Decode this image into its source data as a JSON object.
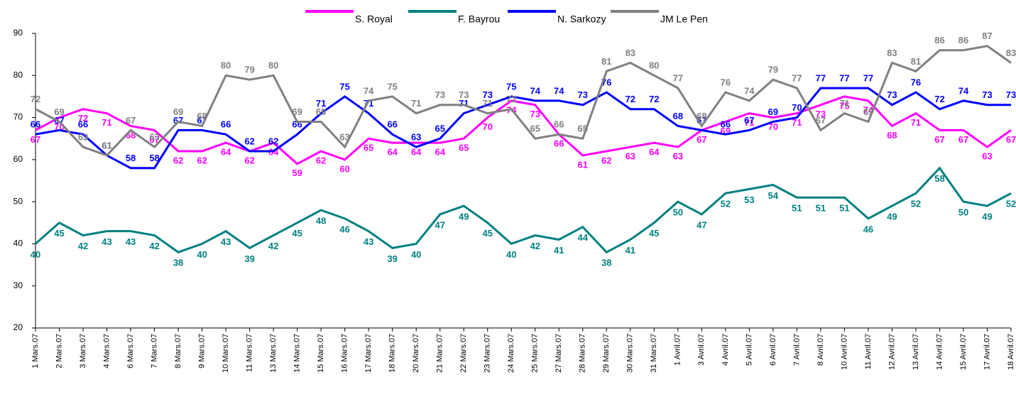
{
  "chart_data": {
    "type": "line",
    "categories": [
      "1 Mars.07",
      "2 Mars.07",
      "3 Mars.07",
      "4 Mars.07",
      "6 Mars.07",
      "7 Mars.07",
      "8 Mars.07",
      "9 Mars.07",
      "10 Mars.07",
      "11 Mars.07",
      "13 Mars.07",
      "14 Mars.07",
      "15 Mars.07",
      "16 Mars.07",
      "17 Mars.07",
      "18 Mars.07",
      "20 Mars.07",
      "21 Mars.07",
      "22 Mars.07",
      "23 Mars.07",
      "24 Mars.07",
      "25 Mars.07",
      "27 Mars.07",
      "28 Mars.07",
      "29 Mars.07",
      "30 Mars.07",
      "31 Mars.07",
      "1 Avril.07",
      "3 Avril.07",
      "4 Avril.07",
      "5 Avril.07",
      "6 Avril.07",
      "7 Avril.07",
      "8 Avril.07",
      "10 Avril.07",
      "11 Avril.07",
      "12 Avril.07",
      "13 Avril.07",
      "14 Avril.07",
      "15 Avril.07",
      "17 Avril.07",
      "18 Avril.07"
    ],
    "series": [
      {
        "name": "S. Royal",
        "color": "#ff00ff",
        "values": [
          67,
          70,
          72,
          71,
          68,
          67,
          62,
          62,
          64,
          62,
          64,
          59,
          62,
          60,
          65,
          64,
          64,
          64,
          65,
          70,
          74,
          73,
          66,
          61,
          62,
          63,
          64,
          63,
          67,
          69,
          71,
          70,
          71,
          73,
          75,
          74,
          68,
          71,
          67,
          67,
          63,
          67
        ]
      },
      {
        "name": "F. Bayrou",
        "color": "#008080",
        "values": [
          40,
          45,
          42,
          43,
          43,
          42,
          38,
          40,
          43,
          39,
          42,
          45,
          48,
          46,
          43,
          39,
          40,
          47,
          49,
          45,
          40,
          42,
          41,
          44,
          38,
          41,
          45,
          50,
          47,
          52,
          53,
          54,
          51,
          51,
          51,
          46,
          49,
          52,
          58,
          50,
          49,
          52
        ]
      },
      {
        "name": "N. Sarkozy",
        "color": "#0000ff",
        "values": [
          66,
          67,
          66,
          61,
          58,
          58,
          67,
          67,
          66,
          62,
          62,
          66,
          71,
          75,
          71,
          66,
          63,
          65,
          71,
          73,
          75,
          74,
          74,
          73,
          76,
          72,
          72,
          68,
          67,
          66,
          67,
          69,
          70,
          77,
          77,
          77,
          73,
          76,
          72,
          74,
          73,
          73
        ]
      },
      {
        "name": "JM Le Pen",
        "color": "#808080",
        "values": [
          72,
          69,
          63,
          61,
          67,
          63,
          69,
          68,
          80,
          79,
          80,
          69,
          69,
          63,
          74,
          75,
          71,
          73,
          73,
          71,
          72,
          65,
          66,
          65,
          81,
          83,
          80,
          77,
          68,
          76,
          74,
          79,
          77,
          67,
          71,
          69,
          83,
          81,
          86,
          86,
          87,
          83
        ]
      }
    ],
    "ylim": [
      20,
      90
    ],
    "yticks": [
      20,
      30,
      40,
      50,
      60,
      70,
      80,
      90
    ],
    "grid": false
  }
}
